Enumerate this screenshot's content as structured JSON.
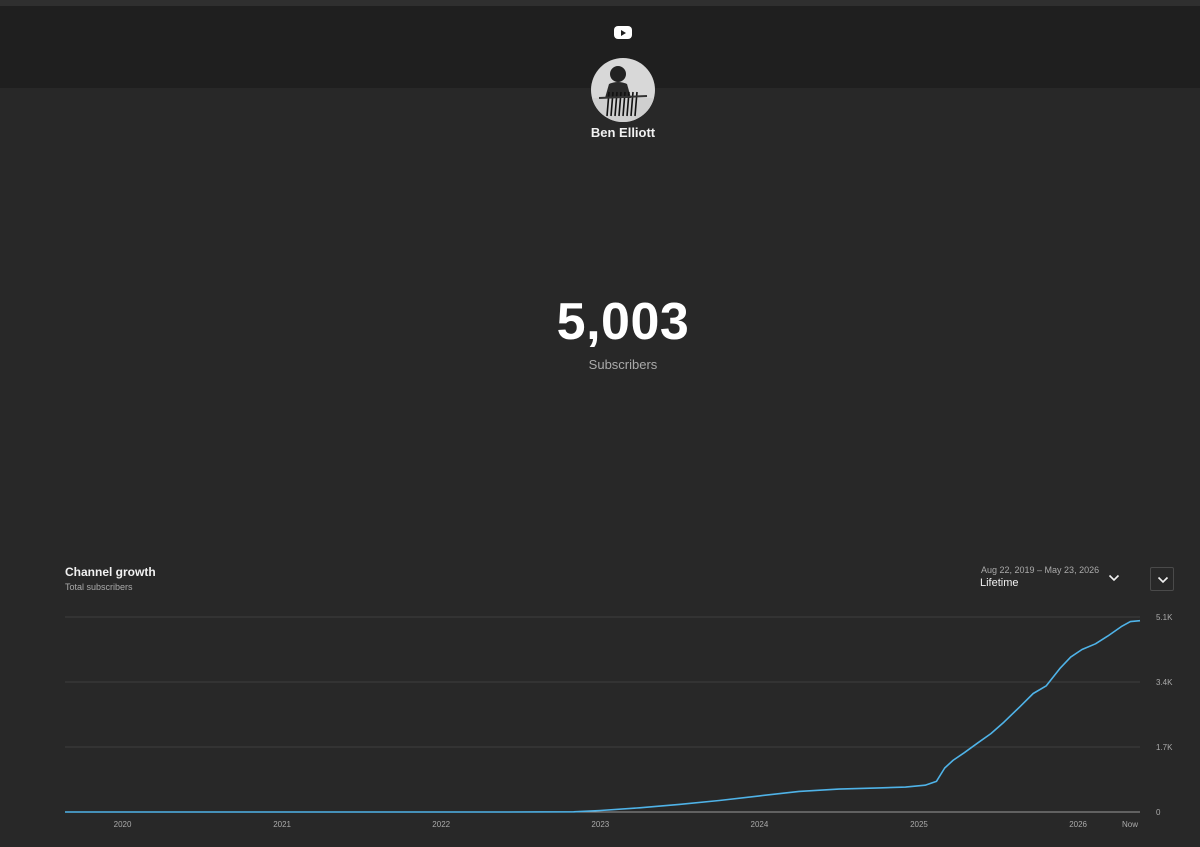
{
  "header": {
    "channel_name": "Ben Elliott",
    "logo_icon": "youtube-icon"
  },
  "counter": {
    "value": "5,003",
    "label": "Subscribers"
  },
  "growth": {
    "title": "Channel growth",
    "subtitle": "Total subscribers",
    "date_range": "Aug 22, 2019 – May 23, 2026",
    "period": "Lifetime"
  },
  "colors": {
    "background": "#282828",
    "banner": "#1f1f1f",
    "line": "#4fb3e8",
    "grid": "#3e3e3e"
  },
  "chart_data": {
    "type": "line",
    "title": "Channel growth",
    "subtitle": "Total subscribers",
    "x_tick_labels": [
      "2020",
      "2021",
      "2022",
      "2023",
      "2024",
      "2025",
      "2026",
      "Now"
    ],
    "y_tick_labels": [
      "0",
      "1.7K",
      "3.4K",
      "5.1K"
    ],
    "y_ticks": [
      0,
      1700,
      3400,
      5100
    ],
    "ylim": [
      0,
      5100
    ],
    "xlim": [
      "2019-08-22",
      "2026-05-23"
    ],
    "grid": true,
    "series": [
      {
        "x": [
          "2019-08-22",
          "2020-06-01",
          "2021-06-01",
          "2022-06-01",
          "2022-11-01",
          "2023-01-01",
          "2023-04-01",
          "2023-07-01",
          "2023-10-01",
          "2024-01-01",
          "2024-04-01",
          "2024-07-01",
          "2024-10-01",
          "2024-12-01",
          "2025-01-15",
          "2025-02-10",
          "2025-03-01",
          "2025-03-20",
          "2025-04-15",
          "2025-05-15",
          "2025-06-15",
          "2025-07-15",
          "2025-08-20",
          "2025-09-20",
          "2025-10-20",
          "2025-11-20",
          "2025-12-15",
          "2026-01-10",
          "2026-02-10",
          "2026-03-10",
          "2026-04-10",
          "2026-05-01",
          "2026-05-23"
        ],
        "y": [
          0,
          0,
          0,
          0,
          5,
          40,
          110,
          200,
          300,
          420,
          540,
          600,
          630,
          650,
          700,
          800,
          1150,
          1350,
          1550,
          1800,
          2050,
          2350,
          2750,
          3100,
          3300,
          3750,
          4050,
          4250,
          4400,
          4600,
          4850,
          4980,
          5003
        ]
      }
    ]
  }
}
